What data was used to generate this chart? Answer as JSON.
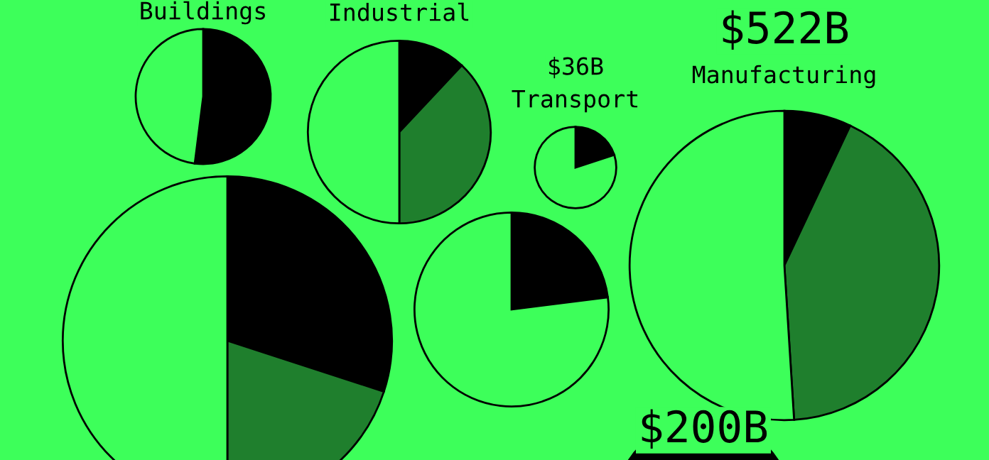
{
  "chart_data": [
    {
      "type": "pie",
      "title": "Buildings",
      "categories": [
        null,
        null
      ],
      "values": [
        52,
        48
      ],
      "colors": [
        "#000000",
        "#3dff5a"
      ]
    },
    {
      "type": "pie",
      "title": "Industrial",
      "categories": [
        null,
        null,
        null
      ],
      "values": [
        12,
        38,
        50
      ],
      "colors": [
        "#000000",
        "#1f7f2d",
        "#3dff5a"
      ]
    },
    {
      "type": "pie",
      "title": "$36B",
      "subtitle": "Transport",
      "categories": [
        null,
        null
      ],
      "values": [
        20,
        80
      ],
      "colors": [
        "#000000",
        "#3dff5a"
      ]
    },
    {
      "type": "pie",
      "title": "$522B",
      "subtitle": "Manufacturing",
      "categories": [
        null,
        null,
        null
      ],
      "values": [
        7,
        42,
        51
      ],
      "colors": [
        "#000000",
        "#1f7f2d",
        "#3dff5a"
      ]
    },
    {
      "type": "pie",
      "categories": [
        null,
        null,
        null
      ],
      "values": [
        30,
        20,
        50
      ],
      "colors": [
        "#000000",
        "#1f7f2d",
        "#3dff5a"
      ]
    },
    {
      "type": "pie",
      "categories": [
        null,
        null
      ],
      "values": [
        23,
        77
      ],
      "colors": [
        "#000000",
        "#3dff5a"
      ]
    },
    {
      "type": "pie",
      "title": "$200B",
      "categories": [
        null
      ],
      "values": [
        100
      ],
      "colors": [
        "#000000"
      ]
    }
  ]
}
